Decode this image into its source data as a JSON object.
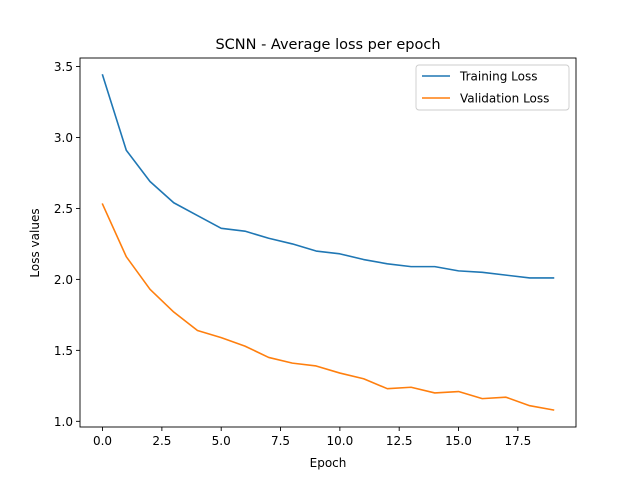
{
  "chart_data": {
    "type": "line",
    "title": "SCNN - Average loss per epoch",
    "xlabel": "Epoch",
    "ylabel": "Loss values",
    "xlim": [
      -0.95,
      19.95
    ],
    "ylim": [
      0.96,
      3.56
    ],
    "xticks": [
      0.0,
      2.5,
      5.0,
      7.5,
      10.0,
      12.5,
      15.0,
      17.5
    ],
    "xtick_labels": [
      "0.0",
      "2.5",
      "5.0",
      "7.5",
      "10.0",
      "12.5",
      "15.0",
      "17.5"
    ],
    "yticks": [
      1.0,
      1.5,
      2.0,
      2.5,
      3.0,
      3.5
    ],
    "ytick_labels": [
      "1.0",
      "1.5",
      "2.0",
      "2.5",
      "3.0",
      "3.5"
    ],
    "grid": false,
    "legend_position": "upper right",
    "x": [
      0,
      1,
      2,
      3,
      4,
      5,
      6,
      7,
      8,
      9,
      10,
      11,
      12,
      13,
      14,
      15,
      16,
      17,
      18,
      19
    ],
    "series": [
      {
        "name": "Training Loss",
        "color": "#1f77b4",
        "values": [
          3.44,
          2.91,
          2.69,
          2.54,
          2.45,
          2.36,
          2.34,
          2.29,
          2.25,
          2.2,
          2.18,
          2.14,
          2.11,
          2.09,
          2.09,
          2.06,
          2.05,
          2.03,
          2.01,
          2.01
        ]
      },
      {
        "name": "Validation Loss",
        "color": "#ff7f0e",
        "values": [
          2.53,
          2.16,
          1.93,
          1.77,
          1.64,
          1.59,
          1.53,
          1.45,
          1.41,
          1.39,
          1.34,
          1.3,
          1.23,
          1.24,
          1.2,
          1.21,
          1.16,
          1.17,
          1.11,
          1.08
        ]
      }
    ]
  }
}
